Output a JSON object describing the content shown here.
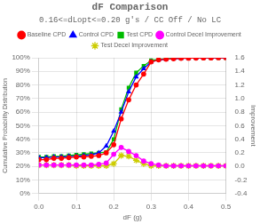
{
  "chart_data": {
    "type": "line",
    "title": "dF Comparison",
    "subtitle": "0.16<=dLopt<=0.20 g's / CC Off / No LC",
    "x_label": "dF (g)",
    "y_label": "Cumulative Probability Distribution",
    "y2_label": "Improvement",
    "x": [
      0.0,
      0.02,
      0.04,
      0.06,
      0.08,
      0.1,
      0.12,
      0.14,
      0.16,
      0.18,
      0.2,
      0.22,
      0.24,
      0.26,
      0.28,
      0.3,
      0.32,
      0.34,
      0.36,
      0.38,
      0.4,
      0.42,
      0.44,
      0.46,
      0.48,
      0.5
    ],
    "series": [
      {
        "name": "Baseline CPD",
        "color": "#ff0000",
        "marker": "circle",
        "values": [
          0.25,
          0.25,
          0.26,
          0.26,
          0.265,
          0.27,
          0.27,
          0.275,
          0.28,
          0.3,
          0.36,
          0.55,
          0.69,
          0.8,
          0.88,
          0.97,
          0.985,
          0.99,
          0.993,
          0.996,
          0.997,
          0.998,
          0.999,
          0.999,
          1.0,
          1.0
        ]
      },
      {
        "name": "Control CPD",
        "color": "#0000ff",
        "marker": "triangle",
        "values": [
          0.265,
          0.265,
          0.27,
          0.27,
          0.275,
          0.275,
          0.28,
          0.285,
          0.3,
          0.35,
          0.46,
          0.6,
          0.75,
          0.86,
          0.92,
          0.97,
          0.985,
          0.99,
          0.993,
          0.996,
          0.997,
          0.998,
          0.999,
          0.999,
          1.0,
          1.0
        ]
      },
      {
        "name": "Test CPD",
        "color": "#00bb00",
        "marker": "square",
        "values": [
          0.27,
          0.27,
          0.275,
          0.275,
          0.28,
          0.285,
          0.29,
          0.295,
          0.3,
          0.305,
          0.4,
          0.62,
          0.78,
          0.89,
          0.94,
          0.98,
          0.99,
          0.993,
          0.996,
          0.998,
          0.999,
          0.999,
          1.0,
          1.0,
          1.0,
          1.0
        ]
      },
      {
        "name": "Control Decel Improvement",
        "color": "#ff00ff",
        "marker": "circle",
        "axis": "y2",
        "values": [
          0.02,
          0.02,
          0.02,
          0.02,
          0.02,
          0.02,
          0.02,
          0.02,
          0.03,
          0.05,
          0.18,
          0.28,
          0.22,
          0.16,
          0.08,
          0.04,
          0.02,
          0.01,
          0.01,
          0.01,
          0.01,
          0.01,
          0.01,
          0.01,
          0.01,
          0.01
        ]
      },
      {
        "name": "Test Decel Improvement",
        "color": "#cccc00",
        "marker": "star",
        "axis": "y2",
        "values": [
          0.02,
          0.02,
          0.02,
          0.02,
          0.02,
          0.01,
          0.01,
          0.01,
          0.01,
          0.01,
          0.04,
          0.16,
          0.15,
          0.09,
          0.04,
          0.01,
          0.01,
          0.01,
          0.01,
          0.01,
          0.01,
          0.01,
          0.01,
          0.01,
          0.01,
          0.01
        ]
      }
    ],
    "xlim": [
      0.0,
      0.5
    ],
    "xticks": [
      {
        "value": 0.0,
        "label": "0.0"
      },
      0.1,
      0.2,
      0.3,
      0.4,
      0.5
    ],
    "ylim": [
      0.0,
      1.0
    ],
    "yticks": [
      {
        "value": 0.0,
        "label": "0%"
      },
      {
        "value": 0.1,
        "label": "10%"
      },
      {
        "value": 0.2,
        "label": "20%"
      },
      {
        "value": 0.3,
        "label": "30%"
      },
      {
        "value": 0.4,
        "label": "40%"
      },
      {
        "value": 0.5,
        "label": "50%"
      },
      {
        "value": 0.6,
        "label": "60%"
      },
      {
        "value": 0.7,
        "label": "70%"
      },
      {
        "value": 0.8,
        "label": "80%"
      },
      {
        "value": 0.9,
        "label": "90%"
      },
      {
        "value": 1.0,
        "label": "100%"
      }
    ],
    "y2lim": [
      -0.4,
      1.6
    ],
    "y2ticks": [
      -0.4,
      -0.2,
      {
        "value": 0.0,
        "label": "0.0"
      },
      0.2,
      0.4,
      0.6,
      0.8,
      {
        "value": 1.0,
        "label": "1.0"
      },
      1.2,
      1.4,
      1.6
    ],
    "grid": true,
    "legend": "top"
  }
}
